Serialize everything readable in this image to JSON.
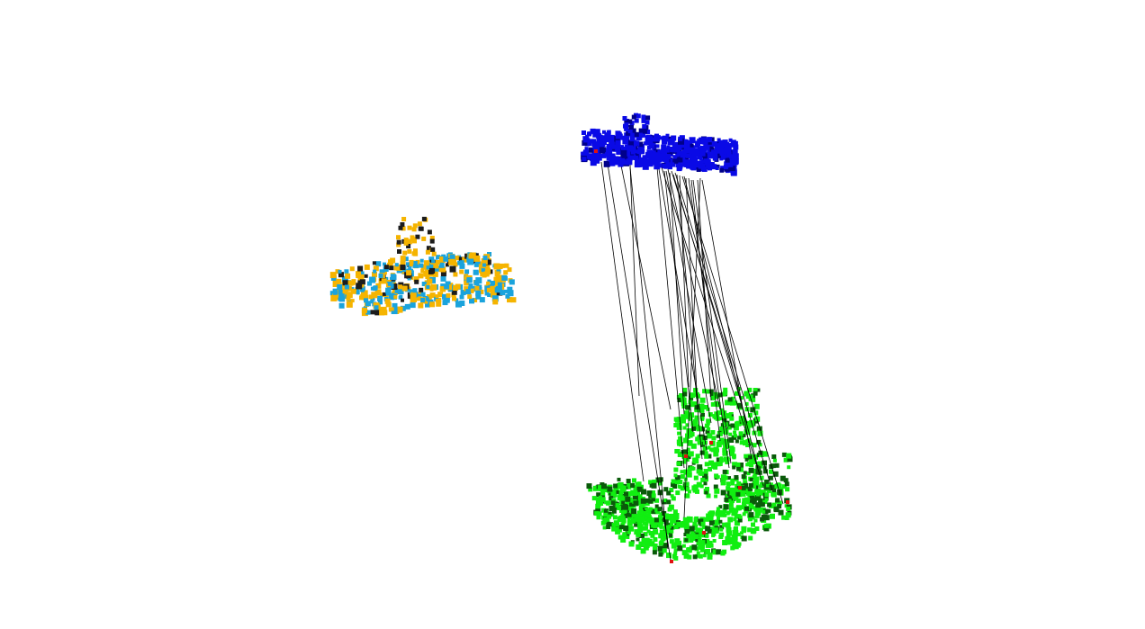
{
  "scene": {
    "background": "#ffffff",
    "aligned_cloud": {
      "colors": {
        "primary": "#f5b400",
        "secondary": "#1aa3dc",
        "shadow": "#1c1c1c"
      }
    },
    "source_cloud": {
      "color": "#0a0ae6",
      "shadow": "#00008a"
    },
    "target_cloud": {
      "color": "#11ee11",
      "shadow": "#0a5a0a"
    },
    "correspondence_lines": {
      "color": "#000000"
    },
    "keypoints": {
      "color": "#e01010"
    }
  }
}
